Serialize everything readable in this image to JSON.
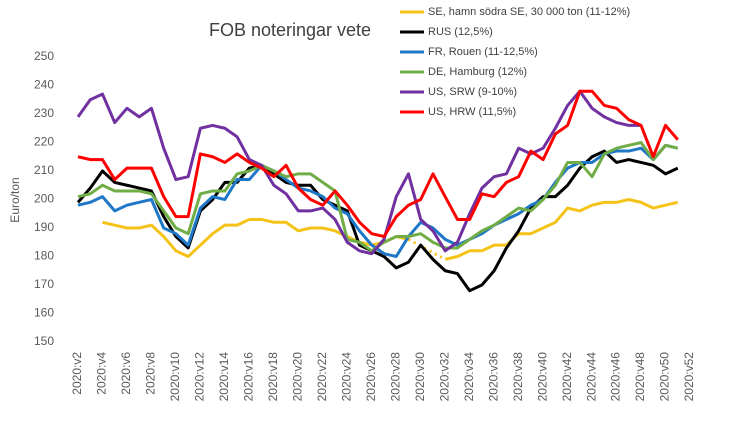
{
  "chart_data": {
    "type": "line",
    "title": "FOB noteringar vete",
    "y_label": "Euro/ton",
    "categories": [
      "2020:v2",
      null,
      "2020:v4",
      null,
      "2020:v6",
      null,
      "2020:v8",
      null,
      "2020:v10",
      null,
      "2020:v12",
      null,
      "2020:v14",
      null,
      "2020:v16",
      null,
      "2020:v18",
      null,
      "2020:v20",
      null,
      "2020:v22",
      null,
      "2020:v24",
      null,
      "2020:v26",
      null,
      "2020:v28",
      null,
      "2020:v30",
      null,
      "2020:v32",
      null,
      "2020:v34",
      null,
      "2020:v36",
      null,
      "2020:v38",
      null,
      "2020:v40",
      null,
      "2020:v42",
      null,
      "2020:v44",
      null,
      "2020:v46",
      null,
      "2020:v48",
      null,
      "2020:v50",
      null,
      "2020:v52"
    ],
    "ylim": [
      150,
      250
    ],
    "yticks": [
      150,
      160,
      170,
      180,
      190,
      200,
      210,
      220,
      230,
      240,
      250
    ],
    "grid": false,
    "legend": "top-right",
    "series": [
      {
        "name": "SE, hamn södra SE, 30 000 ton (11-12%)",
        "color": "#f5c218",
        "values": [
          null,
          null,
          192,
          191,
          190,
          190,
          191,
          187,
          182,
          180,
          184,
          188,
          191,
          191,
          193,
          193,
          192,
          192,
          189,
          190,
          190,
          189,
          187,
          185,
          184,
          185,
          187,
          186,
          null,
          null,
          179,
          180,
          182,
          182,
          184,
          184,
          188,
          188,
          190,
          192,
          197,
          196,
          198,
          199,
          199,
          200,
          199,
          197,
          198,
          199,
          null
        ]
      },
      {
        "name": "RUS (12,5%)",
        "color": "#000000",
        "values": [
          199,
          204,
          210,
          206,
          205,
          204,
          203,
          194,
          187,
          183,
          196,
          200,
          206,
          206,
          211,
          212,
          209,
          206,
          205,
          205,
          200,
          198,
          196,
          184,
          182,
          180,
          176,
          178,
          184,
          179,
          175,
          174,
          168,
          170,
          175,
          183,
          189,
          197,
          201,
          201,
          205,
          211,
          215,
          217,
          213,
          214,
          213,
          212,
          209,
          211,
          null
        ]
      },
      {
        "name": "FR, Rouen (11-12,5%)",
        "color": "#1f77c8",
        "values": [
          198,
          199,
          201,
          196,
          198,
          199,
          200,
          190,
          188,
          184,
          197,
          201,
          200,
          207,
          207,
          212,
          210,
          207,
          204,
          203,
          201,
          197,
          195,
          189,
          184,
          181,
          180,
          187,
          192,
          190,
          186,
          184,
          186,
          188,
          191,
          193,
          195,
          198,
          200,
          206,
          211,
          213,
          213,
          216,
          217,
          217,
          218,
          214,
          219,
          218,
          null
        ]
      },
      {
        "name": "DE, Hamburg (12%)",
        "color": "#70ad47",
        "values": [
          201,
          202,
          205,
          203,
          203,
          203,
          202,
          196,
          190,
          188,
          202,
          203,
          203,
          209,
          210,
          212,
          210,
          208,
          209,
          209,
          206,
          203,
          186,
          185,
          182,
          185,
          187,
          187,
          188,
          185,
          183,
          183,
          186,
          189,
          191,
          194,
          197,
          196,
          200,
          205,
          213,
          213,
          208,
          216,
          218,
          219,
          220,
          214,
          219,
          218,
          null
        ]
      },
      {
        "name": "US, SRW (9-10%)",
        "color": "#7030a0",
        "values": [
          229,
          235,
          237,
          227,
          232,
          229,
          232,
          218,
          207,
          208,
          225,
          226,
          225,
          222,
          214,
          212,
          205,
          202,
          196,
          196,
          197,
          193,
          185,
          182,
          181,
          186,
          201,
          209,
          193,
          189,
          182,
          185,
          195,
          204,
          208,
          209,
          218,
          216,
          218,
          225,
          233,
          238,
          232,
          229,
          227,
          226,
          226,
          null,
          null,
          null,
          null
        ]
      },
      {
        "name": "US, HRW (11,5%)",
        "color": "#ff0000",
        "values": [
          215,
          214,
          214,
          207,
          211,
          211,
          211,
          201,
          194,
          194,
          216,
          215,
          213,
          216,
          213,
          211,
          208,
          212,
          204,
          200,
          198,
          203,
          198,
          192,
          188,
          187,
          194,
          198,
          200,
          209,
          201,
          193,
          193,
          202,
          201,
          206,
          208,
          217,
          214,
          223,
          226,
          238,
          238,
          233,
          232,
          228,
          226,
          215,
          226,
          221,
          null
        ]
      }
    ]
  }
}
